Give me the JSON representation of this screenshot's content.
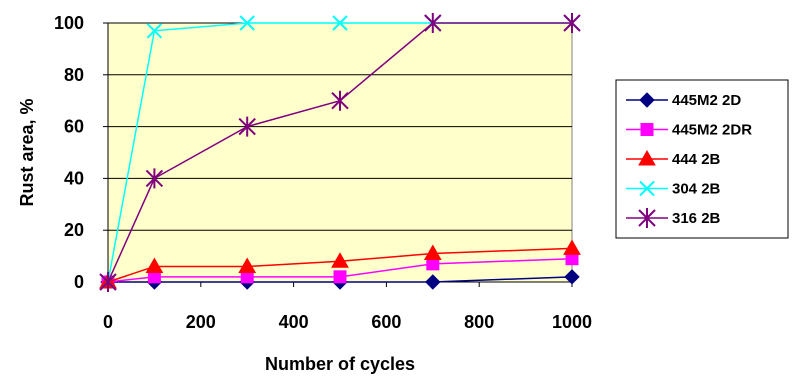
{
  "chart_data": {
    "type": "line",
    "title": "",
    "xlabel": "Number of cycles",
    "ylabel": "Rust area, %",
    "xlim": [
      0,
      1000
    ],
    "ylim": [
      0,
      100
    ],
    "x_ticks": [
      0,
      200,
      400,
      600,
      800,
      1000
    ],
    "y_ticks": [
      0,
      20,
      40,
      60,
      80,
      100
    ],
    "grid": "horizontal",
    "plot_background": "#FFFFCC",
    "legend_position": "right",
    "series": [
      {
        "name": "445M2 2D",
        "color": "#000080",
        "marker": "diamond",
        "x": [
          0,
          100,
          300,
          500,
          700,
          1000
        ],
        "y": [
          0,
          0,
          0,
          0,
          0,
          2
        ]
      },
      {
        "name": "445M2 2DR",
        "color": "#FF00FF",
        "marker": "square",
        "x": [
          0,
          100,
          300,
          500,
          700,
          1000
        ],
        "y": [
          0,
          2,
          2,
          2,
          7,
          9
        ]
      },
      {
        "name": "444 2B",
        "color": "#FF0000",
        "marker": "triangle",
        "x": [
          0,
          100,
          300,
          500,
          700,
          1000
        ],
        "y": [
          0,
          6,
          6,
          8,
          11,
          13
        ]
      },
      {
        "name": "304 2B",
        "color": "#00FFFF",
        "marker": "x",
        "x": [
          0,
          100,
          300,
          500,
          700,
          1000
        ],
        "y": [
          0,
          97,
          100,
          100,
          100,
          100
        ]
      },
      {
        "name": "316 2B",
        "color": "#800080",
        "marker": "star",
        "x": [
          0,
          100,
          300,
          500,
          700,
          1000
        ],
        "y": [
          0,
          40,
          60,
          70,
          100,
          100
        ]
      }
    ]
  }
}
